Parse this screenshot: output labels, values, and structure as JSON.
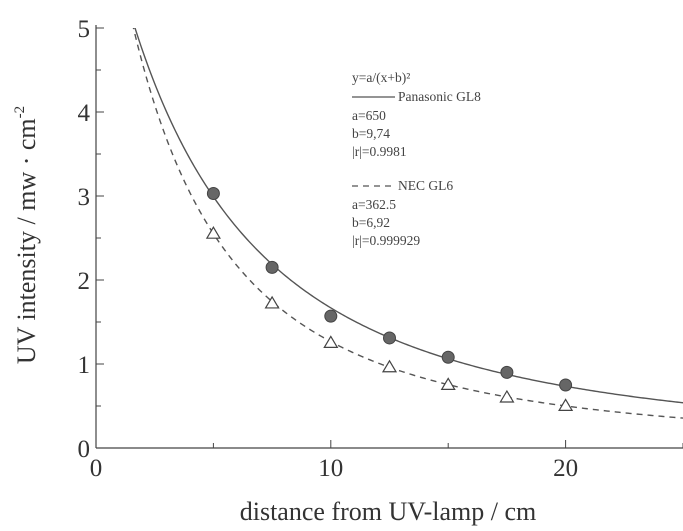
{
  "chart_data": {
    "type": "scatter",
    "xlabel": "distance from UV-lamp / cm",
    "ylabel": "UV intensity / mw · cm",
    "ylabel_sup": "-2",
    "xlim": [
      0,
      25
    ],
    "ylim": [
      0,
      5
    ],
    "xticks": [
      0,
      10,
      20
    ],
    "yticks": [
      0,
      1,
      2,
      3,
      4,
      5
    ],
    "grid": false,
    "legend_position": "upper-right",
    "model": "y=a/(x+b)²",
    "series": [
      {
        "name": "Panasonic GL8",
        "marker": "filled-circle",
        "line_style": "solid",
        "fit": {
          "a": 650,
          "b": 9.74
        },
        "x": [
          5,
          7.5,
          10,
          12.5,
          15,
          17.5,
          20
        ],
        "y": [
          3.03,
          2.15,
          1.57,
          1.31,
          1.08,
          0.9,
          0.75
        ]
      },
      {
        "name": "NEC GL6",
        "marker": "open-triangle",
        "line_style": "dashed",
        "fit": {
          "a": 362.5,
          "b": 6.92
        },
        "x": [
          5,
          7.5,
          10,
          12.5,
          15,
          17.5,
          20
        ],
        "y": [
          2.55,
          1.72,
          1.25,
          0.96,
          0.75,
          0.6,
          0.5
        ]
      }
    ],
    "legend": {
      "formula": "y=a/(x+b)²",
      "entries": [
        {
          "label": "Panasonic GL8",
          "lines": [
            "a=650",
            "b=9,74",
            "|r|=0.9981"
          ]
        },
        {
          "label": "NEC GL6",
          "lines": [
            "a=362.5",
            "b=6,92",
            "|r|=0.999929"
          ]
        }
      ]
    }
  }
}
